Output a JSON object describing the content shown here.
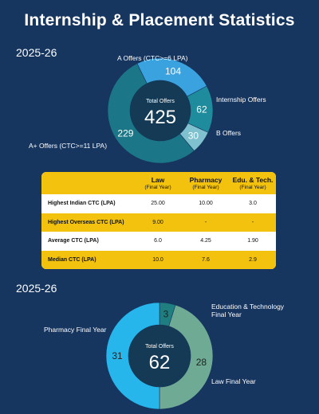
{
  "page_title": "Internship & Placement Statistics",
  "colors": {
    "background": "#16355f",
    "table_accent": "#f2c20f",
    "center_fill": "#143a55"
  },
  "chart_data": [
    {
      "type": "pie",
      "variant": "donut",
      "year_label": "2025-26",
      "center_label": "Total Offers",
      "center_value": "425",
      "slices": [
        {
          "label": "Internship Offers",
          "value": 62,
          "color": "#1e8c9c"
        },
        {
          "label": "B Offers",
          "value": 30,
          "color": "#7fc1cf"
        },
        {
          "label": "A+ Offers (CTC>=11 LPA)",
          "value": 229,
          "color": "#1b7787"
        },
        {
          "label": "A Offers (CTC>=6 LPA)",
          "value": 104,
          "color": "#3aa3df"
        }
      ]
    },
    {
      "type": "table",
      "columns": [
        {
          "name": "",
          "sub": ""
        },
        {
          "name": "Law",
          "sub": "(Final Year)"
        },
        {
          "name": "Pharmacy",
          "sub": "(Final Year)"
        },
        {
          "name": "Edu. & Tech.",
          "sub": "(Final Year)"
        }
      ],
      "rows": [
        {
          "label": "Highest Indian CTC (LPA)",
          "values": [
            "25.00",
            "10.00",
            "3.0"
          ]
        },
        {
          "label": "Highest Overseas CTC (LPA)",
          "values": [
            "9.00",
            "-",
            "-"
          ]
        },
        {
          "label": "Average CTC (LPA)",
          "values": [
            "6.0",
            "4.25",
            "1.90"
          ]
        },
        {
          "label": "Median CTC (LPA)",
          "values": [
            "10.0",
            "7.6",
            "2.9"
          ]
        }
      ]
    },
    {
      "type": "pie",
      "variant": "donut",
      "year_label": "2025-26",
      "center_label": "Total Offers",
      "center_value": "62",
      "slices": [
        {
          "label": "Education & Technology Final Year",
          "value": 3,
          "color": "#1f7e80"
        },
        {
          "label": "Law Final Year",
          "value": 28,
          "color": "#6faa94"
        },
        {
          "label": "Pharmacy Final Year",
          "value": 31,
          "color": "#27b6ec"
        }
      ]
    }
  ]
}
